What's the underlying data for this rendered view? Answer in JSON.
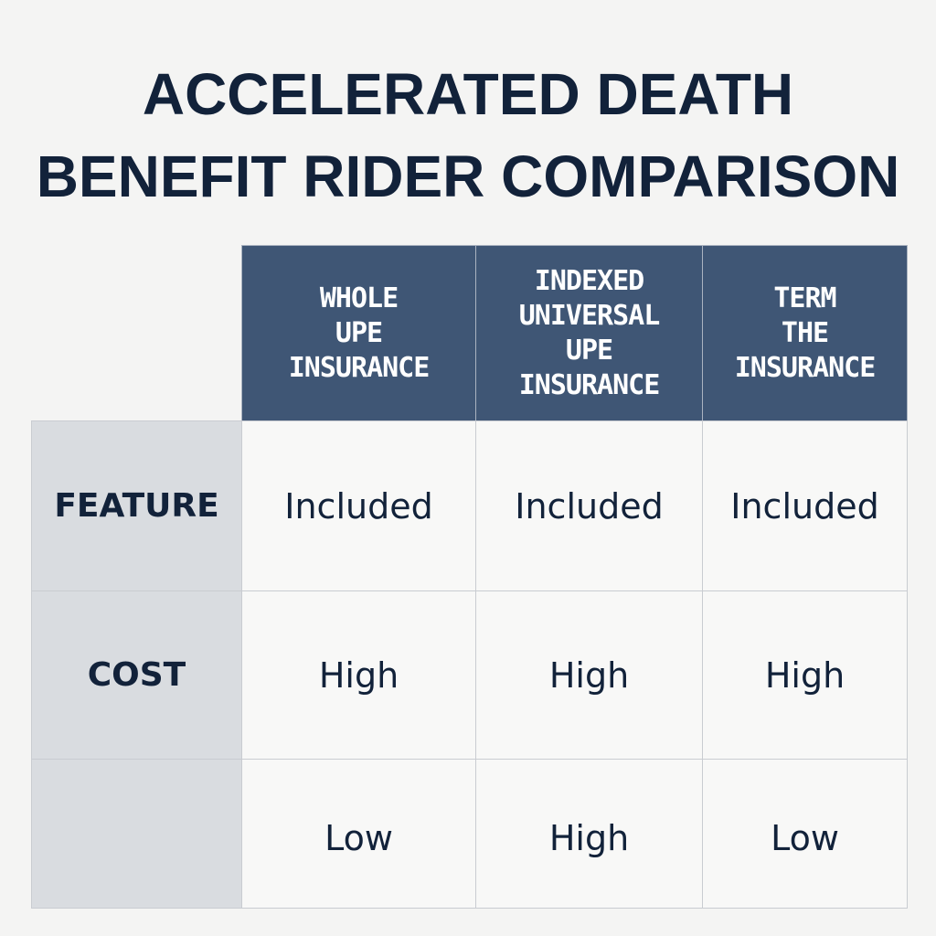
{
  "title": {
    "line1": "ACCELERATED DEATH",
    "line2": "BENEFIT RIDER COMPARISON"
  },
  "colors": {
    "header_bg": "#3f5675",
    "row_label_bg": "#d9dce0",
    "title_text": "#12223a"
  },
  "table": {
    "columns": [
      {
        "lines": [
          "WHOLE",
          "UPE",
          "INSURANCE"
        ]
      },
      {
        "lines": [
          "INDEXED",
          "UNIVERSAL",
          "UPE",
          "INSURANCE"
        ]
      },
      {
        "lines": [
          "TERM",
          "THE",
          "INSURANCE"
        ]
      }
    ],
    "rows": [
      {
        "label": "FEATURE",
        "values": [
          "Included",
          "Included",
          "Included"
        ]
      },
      {
        "label": "COST",
        "values": [
          "High",
          "High",
          "High"
        ]
      },
      {
        "label": "",
        "values": [
          "Low",
          "High",
          "Low"
        ]
      }
    ]
  }
}
